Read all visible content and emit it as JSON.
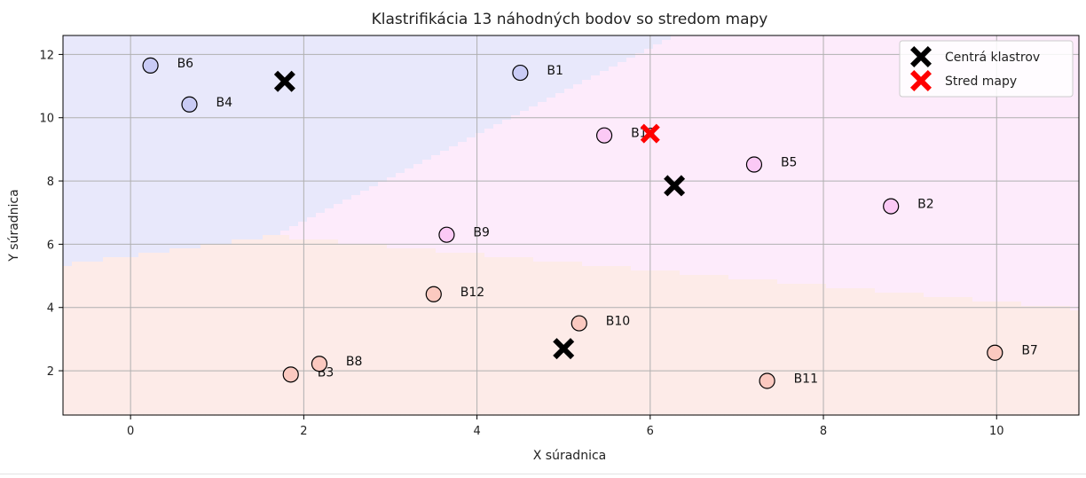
{
  "chart_data": {
    "type": "scatter",
    "title": "Klastrifikácia 13 náhodných bodov so stredom mapy",
    "xlabel": "X súradnica",
    "ylabel": "Y súradnica",
    "xlim": [
      -0.78,
      10.95
    ],
    "ylim": [
      0.6,
      12.6
    ],
    "xticks": [
      0,
      2,
      4,
      6,
      8,
      10
    ],
    "yticks": [
      2,
      4,
      6,
      8,
      10,
      12
    ],
    "grid": true,
    "legend_position": "top-right",
    "cluster_colors": [
      "#c9cbf5",
      "#fbc9f5",
      "#fbc9c0"
    ],
    "region_colors": [
      "#e8e8fb",
      "#fdebfb",
      "#fdebe8"
    ],
    "points": [
      {
        "label": "B1",
        "x": 4.5,
        "y": 11.42,
        "cluster": 0
      },
      {
        "label": "B2",
        "x": 8.78,
        "y": 7.2,
        "cluster": 1
      },
      {
        "label": "B3",
        "x": 1.85,
        "y": 1.88,
        "cluster": 2
      },
      {
        "label": "B4",
        "x": 0.68,
        "y": 10.42,
        "cluster": 0
      },
      {
        "label": "B5",
        "x": 7.2,
        "y": 8.52,
        "cluster": 1
      },
      {
        "label": "B6",
        "x": 0.23,
        "y": 11.65,
        "cluster": 0
      },
      {
        "label": "B7",
        "x": 9.98,
        "y": 2.57,
        "cluster": 2
      },
      {
        "label": "B8",
        "x": 2.18,
        "y": 2.22,
        "cluster": 2
      },
      {
        "label": "B9",
        "x": 3.65,
        "y": 6.3,
        "cluster": 1
      },
      {
        "label": "B10",
        "x": 5.18,
        "y": 3.5,
        "cluster": 2
      },
      {
        "label": "B11",
        "x": 7.35,
        "y": 1.68,
        "cluster": 2
      },
      {
        "label": "B12",
        "x": 3.5,
        "y": 4.42,
        "cluster": 2
      },
      {
        "label": "B13",
        "x": 5.47,
        "y": 9.44,
        "cluster": 1
      }
    ],
    "centroids": [
      {
        "x": 1.78,
        "y": 11.15
      },
      {
        "x": 6.28,
        "y": 7.85
      },
      {
        "x": 5.0,
        "y": 2.7
      }
    ],
    "map_center": {
      "x": 6.0,
      "y": 9.5
    },
    "legend": [
      {
        "label": "Centrá klastrov",
        "color": "#000000"
      },
      {
        "label": "Stred mapy",
        "color": "#ff0000"
      }
    ]
  }
}
